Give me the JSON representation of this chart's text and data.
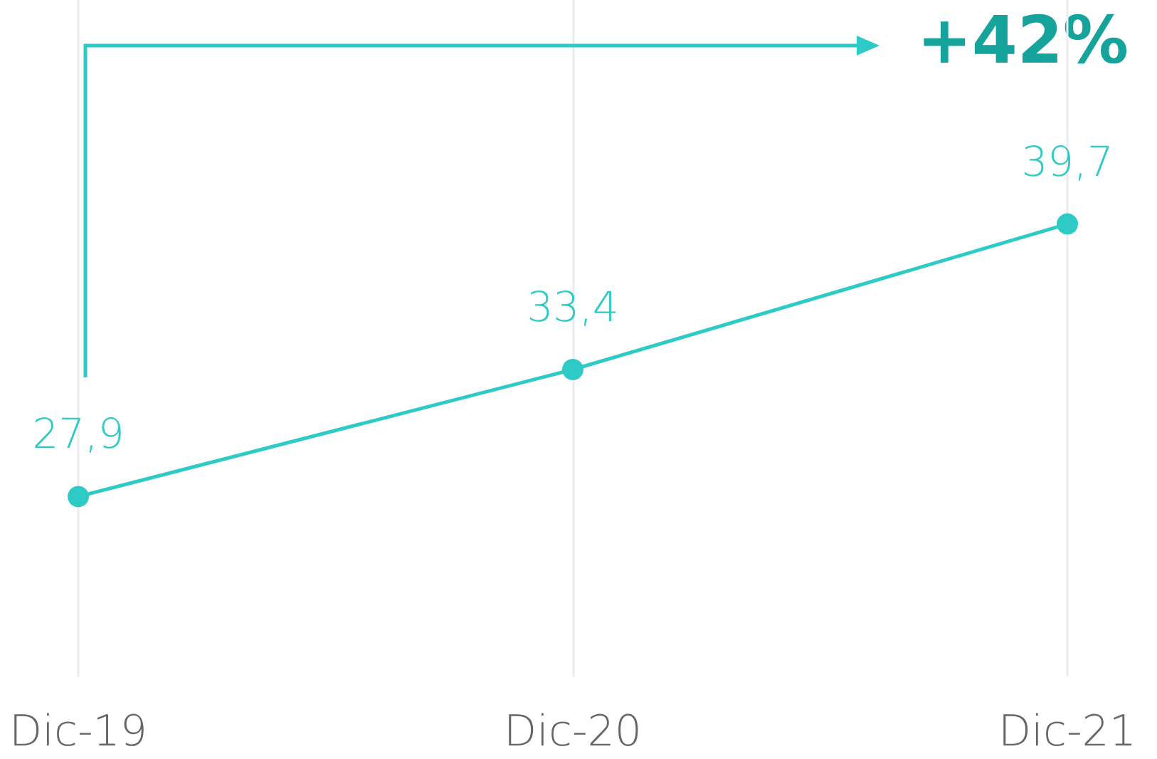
{
  "chart_data": {
    "type": "line",
    "categories": [
      "Dic-19",
      "Dic-20",
      "Dic-21"
    ],
    "series": [
      {
        "color": "#2ecac6",
        "values": [
          27.9,
          33.4,
          39.7
        ],
        "value_labels": [
          "27,9",
          "33,4",
          "39,7"
        ]
      }
    ],
    "annotations": [
      "+42%"
    ],
    "marker": "circle",
    "line_style": "solid",
    "grid": "x"
  }
}
